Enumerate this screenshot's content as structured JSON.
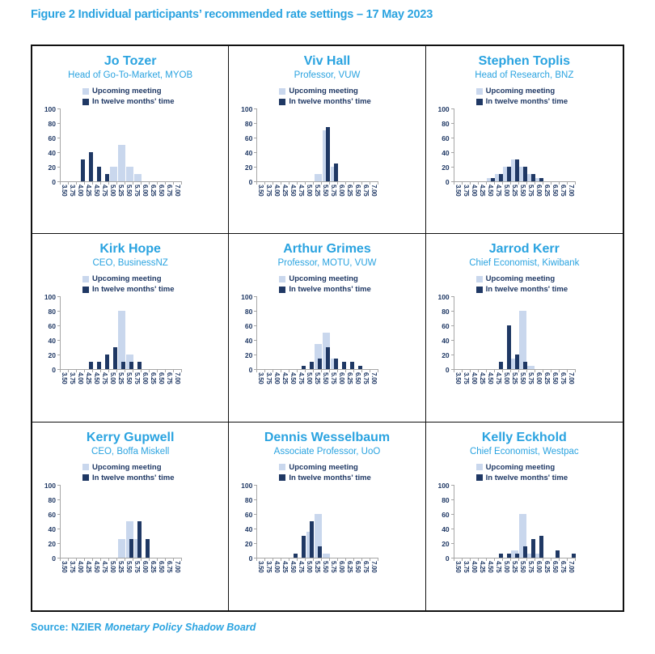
{
  "title": "Figure 2 Individual participants’ recommended rate settings – 17 May 2023",
  "source": {
    "prefix": "Source: NZIER",
    "name": "Monetary Policy Shadow Board"
  },
  "colors": {
    "accent": "#2aa3e0",
    "navy": "#1f3864",
    "light_bar": "#c9d7ed",
    "axis": "#a6a6a6"
  },
  "chart_data": {
    "type": "bar",
    "categories": [
      "3.50",
      "3.75",
      "4.00",
      "4.25",
      "4.50",
      "4.75",
      "5.00",
      "5.25",
      "5.50",
      "5.75",
      "6.00",
      "6.25",
      "6.50",
      "6.75",
      "7.00"
    ],
    "ylim": [
      0,
      100
    ],
    "yticks": [
      0,
      20,
      40,
      60,
      80,
      100
    ],
    "grid": false,
    "legend_position": "top",
    "legend": [
      "Upcoming meeting",
      "In twelve months' time"
    ],
    "charts": [
      {
        "name": "Jo Tozer",
        "role": "Head of Go-To-Market, MYOB",
        "series": [
          {
            "name": "Upcoming meeting",
            "values": [
              0,
              0,
              0,
              0,
              0,
              0,
              20,
              50,
              20,
              10,
              0,
              0,
              0,
              0,
              0
            ]
          },
          {
            "name": "In twelve months' time",
            "values": [
              0,
              0,
              30,
              40,
              20,
              10,
              0,
              0,
              0,
              0,
              0,
              0,
              0,
              0,
              0
            ]
          }
        ]
      },
      {
        "name": "Viv Hall",
        "role": "Professor, VUW",
        "series": [
          {
            "name": "Upcoming meeting",
            "values": [
              0,
              0,
              0,
              0,
              0,
              0,
              0,
              10,
              70,
              20,
              0,
              0,
              0,
              0,
              0
            ]
          },
          {
            "name": "In twelve months' time",
            "values": [
              0,
              0,
              0,
              0,
              0,
              0,
              0,
              0,
              75,
              25,
              0,
              0,
              0,
              0,
              0
            ]
          }
        ]
      },
      {
        "name": "Stephen Toplis",
        "role": "Head of Research, BNZ",
        "series": [
          {
            "name": "Upcoming meeting",
            "values": [
              0,
              0,
              0,
              0,
              5,
              10,
              20,
              30,
              20,
              10,
              5,
              0,
              0,
              0,
              0
            ]
          },
          {
            "name": "In twelve months' time",
            "values": [
              0,
              0,
              0,
              0,
              5,
              10,
              20,
              30,
              20,
              10,
              5,
              0,
              0,
              0,
              0
            ]
          }
        ]
      },
      {
        "name": "Kirk Hope",
        "role": "CEO, BusinessNZ",
        "series": [
          {
            "name": "Upcoming meeting",
            "values": [
              0,
              0,
              0,
              0,
              0,
              0,
              0,
              80,
              20,
              0,
              0,
              0,
              0,
              0,
              0
            ]
          },
          {
            "name": "In twelve months' time",
            "values": [
              0,
              0,
              0,
              10,
              10,
              20,
              30,
              10,
              10,
              10,
              0,
              0,
              0,
              0,
              0
            ]
          }
        ]
      },
      {
        "name": "Arthur Grimes",
        "role": "Professor, MOTU, VUW",
        "series": [
          {
            "name": "Upcoming meeting",
            "values": [
              0,
              0,
              0,
              0,
              0,
              0,
              0,
              35,
              50,
              15,
              0,
              0,
              0,
              0,
              0
            ]
          },
          {
            "name": "In twelve months' time",
            "values": [
              0,
              0,
              0,
              0,
              0,
              5,
              10,
              15,
              30,
              15,
              10,
              10,
              5,
              0,
              0
            ]
          }
        ]
      },
      {
        "name": "Jarrod Kerr",
        "role": "Chief Economist, Kiwibank",
        "series": [
          {
            "name": "Upcoming meeting",
            "values": [
              0,
              0,
              0,
              0,
              0,
              0,
              0,
              15,
              80,
              5,
              0,
              0,
              0,
              0,
              0
            ]
          },
          {
            "name": "In twelve months' time",
            "values": [
              0,
              0,
              0,
              0,
              0,
              10,
              60,
              20,
              10,
              0,
              0,
              0,
              0,
              0,
              0
            ]
          }
        ]
      },
      {
        "name": "Kerry Gupwell",
        "role": "CEO, Boffa Miskell",
        "series": [
          {
            "name": "Upcoming meeting",
            "values": [
              0,
              0,
              0,
              0,
              0,
              0,
              0,
              25,
              50,
              25,
              0,
              0,
              0,
              0,
              0
            ]
          },
          {
            "name": "In twelve months' time",
            "values": [
              0,
              0,
              0,
              0,
              0,
              0,
              0,
              0,
              25,
              50,
              25,
              0,
              0,
              0,
              0
            ]
          }
        ]
      },
      {
        "name": "Dennis Wesselbaum",
        "role": "Associate Professor, UoO",
        "series": [
          {
            "name": "Upcoming meeting",
            "values": [
              0,
              0,
              0,
              0,
              0,
              0,
              35,
              60,
              5,
              0,
              0,
              0,
              0,
              0,
              0
            ]
          },
          {
            "name": "In twelve months' time",
            "values": [
              0,
              0,
              0,
              0,
              5,
              30,
              50,
              15,
              0,
              0,
              0,
              0,
              0,
              0,
              0
            ]
          }
        ]
      },
      {
        "name": "Kelly Eckhold",
        "role": "Chief Economist, Westpac",
        "series": [
          {
            "name": "Upcoming meeting",
            "values": [
              0,
              0,
              0,
              0,
              0,
              0,
              0,
              10,
              60,
              5,
              5,
              0,
              0,
              0,
              0
            ]
          },
          {
            "name": "In twelve months' time",
            "values": [
              0,
              0,
              0,
              0,
              0,
              5,
              5,
              5,
              15,
              25,
              30,
              0,
              10,
              0,
              5
            ]
          }
        ]
      }
    ]
  }
}
